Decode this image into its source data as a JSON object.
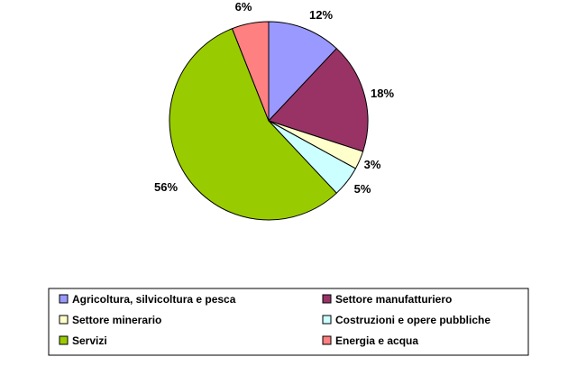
{
  "chart_data": {
    "type": "pie",
    "title": "",
    "slices": [
      {
        "label": "Agricoltura, silvicoltura e pesca",
        "value": 12,
        "display": "12%",
        "color": "#9999ff"
      },
      {
        "label": "Settore manufatturiero",
        "value": 18,
        "display": "18%",
        "color": "#993366"
      },
      {
        "label": "Settore minerario",
        "value": 3,
        "display": "3%",
        "color": "#ffffcc"
      },
      {
        "label": "Costruzioni e opere pubbliche",
        "value": 5,
        "display": "5%",
        "color": "#ccffff"
      },
      {
        "label": "Servizi",
        "value": 56,
        "display": "56%",
        "color": "#99cc00"
      },
      {
        "label": "Energia e acqua",
        "value": 6,
        "display": "6%",
        "color": "#ff8080"
      }
    ],
    "legend": {
      "placement": "bottom",
      "columns": 2
    },
    "start_angle": "12 o'clock",
    "direction": "clockwise"
  }
}
